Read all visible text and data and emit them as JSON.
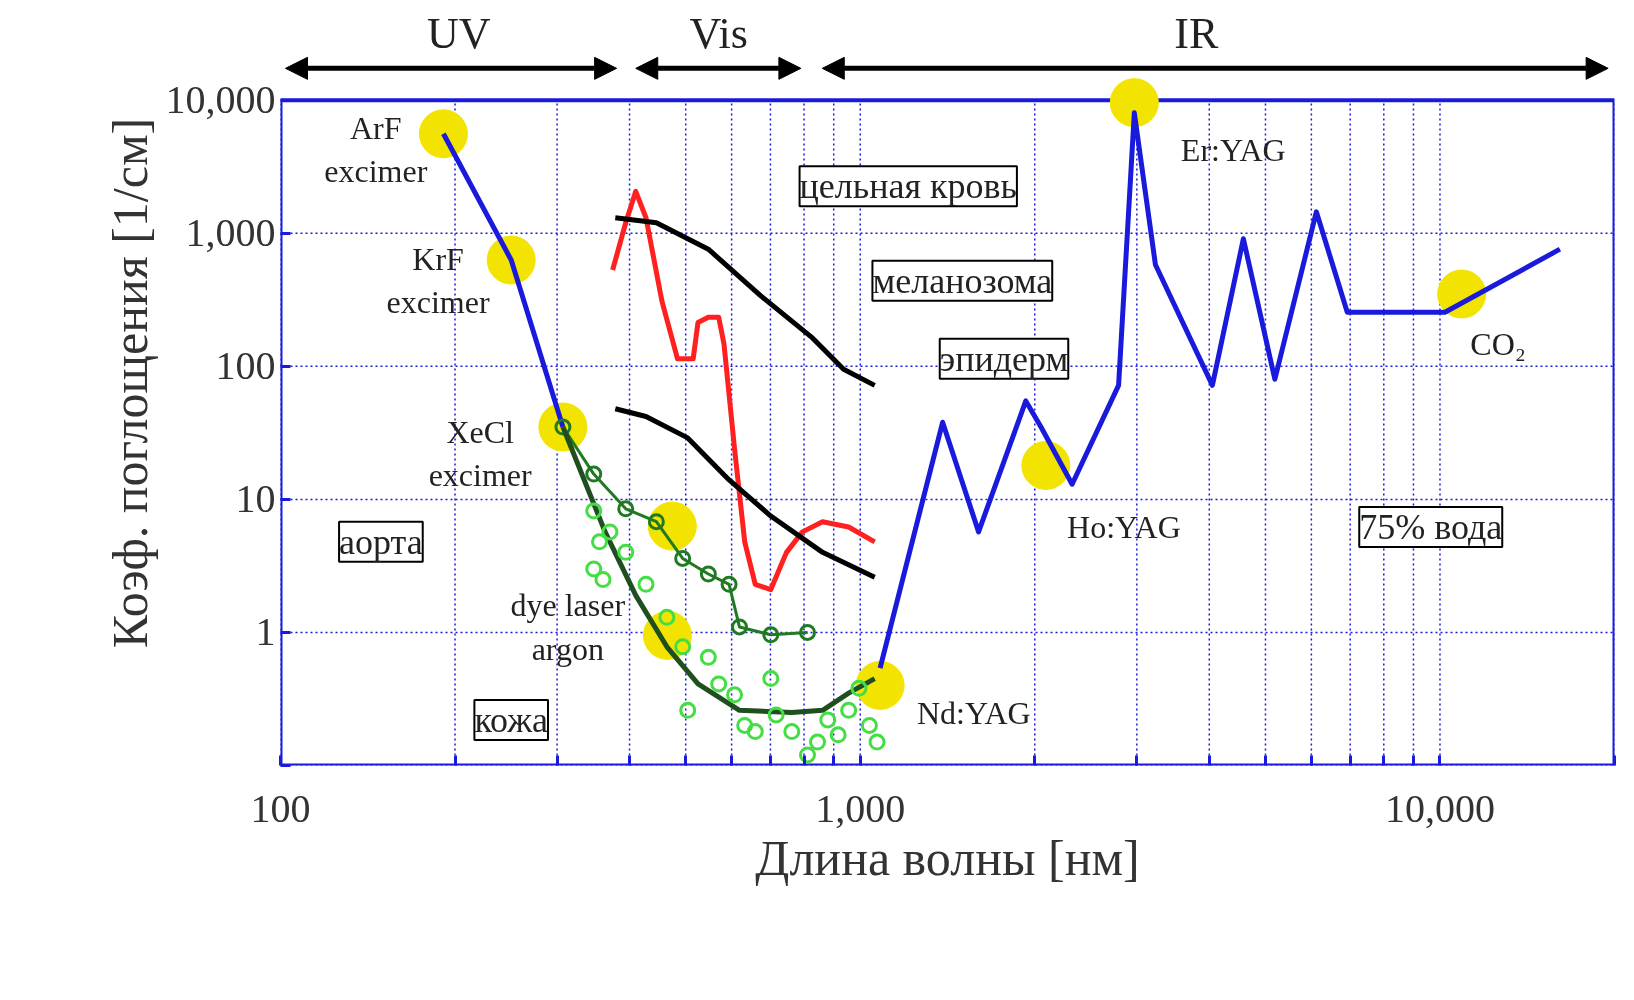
{
  "chart_data": {
    "type": "line",
    "xlabel": "Длина волны [нм]",
    "ylabel": "Коэф. поглощения [1/см]",
    "log": "xy",
    "grid": true,
    "xlim": [
      100,
      20000
    ],
    "ylim": [
      0.1,
      10000
    ],
    "xticks": [
      100,
      {
        "value": 200,
        "label": null
      },
      {
        "value": 300,
        "label": null
      },
      {
        "value": 400,
        "label": null
      },
      {
        "value": 500,
        "label": null
      },
      {
        "value": 600,
        "label": null
      },
      {
        "value": 700,
        "label": null
      },
      {
        "value": 800,
        "label": null
      },
      {
        "value": 900,
        "label": null
      },
      {
        "value": 1000,
        "label": "1,000"
      },
      {
        "value": 2000,
        "label": null
      },
      {
        "value": 3000,
        "label": null
      },
      {
        "value": 4000,
        "label": null
      },
      {
        "value": 5000,
        "label": null
      },
      {
        "value": 6000,
        "label": null
      },
      {
        "value": 7000,
        "label": null
      },
      {
        "value": 8000,
        "label": null
      },
      {
        "value": 9000,
        "label": null
      },
      {
        "value": 10000,
        "label": "10,000"
      },
      {
        "value": 20000,
        "label": null
      }
    ],
    "yticks": [
      {
        "value": 0.1,
        "label": null
      },
      1,
      10,
      100,
      {
        "value": 1000,
        "label": "1,000"
      },
      {
        "value": 10000,
        "label": "10,000"
      }
    ],
    "series": [
      {
        "type": "bubble",
        "color": "#f2e400",
        "x": [
          191,
          250,
          307,
          474,
          465,
          1082,
          2090,
          2970,
          10900
        ],
        "values": [
          5600,
          630,
          35,
          6.3,
          0.95,
          0.4,
          18,
          9600,
          350
        ],
        "sizes": [
          1,
          1,
          1,
          1,
          1,
          1,
          1,
          1,
          1
        ]
      },
      {
        "color": "#1a1adc",
        "x": [
          191,
          250,
          307,
          700,
          1082,
          1387,
          1600,
          1930,
          2050,
          2320,
          2790,
          2970,
          3230,
          4050,
          4580,
          5190,
          6120,
          6920,
          10200,
          16100
        ],
        "values": [
          5600,
          630,
          35,
          null,
          0.54,
          38,
          5.7,
          55,
          35,
          13,
          72,
          8050,
          580,
          72,
          910,
          80,
          1450,
          255,
          255,
          760
        ]
      },
      {
        "color": "#ff2020",
        "x": [
          374,
          394,
          410,
          427,
          455,
          484,
          515,
          525,
          547,
          570,
          582,
          607,
          632,
          659,
          701,
          746,
          795,
          861,
          955,
          1059
        ],
        "values": [
          530,
          1200,
          2070,
          1310,
          308,
          114,
          114,
          214,
          234,
          234,
          148,
          24,
          4.8,
          2.3,
          2.1,
          4.0,
          5.7,
          6.8,
          6.2,
          4.8
        ]
      },
      {
        "color": "#000000",
        "x": [
          378,
          445,
          547,
          673,
          828,
          936,
          1059
        ],
        "values": [
          1310,
          1200,
          760,
          340,
          163,
          95,
          72
        ]
      },
      {
        "color": "#000000",
        "x": [
          378,
          427,
          504,
          594,
          701,
          861,
          1059
        ],
        "values": [
          48,
          42,
          29,
          14,
          7.5,
          4.0,
          2.6
        ]
      },
      {
        "color": "#207a20",
        "marker": "circle",
        "x": [
          307,
          347,
          394,
          445,
          494,
          547,
          594,
          619,
          701,
          811
        ],
        "values": [
          35,
          15.5,
          8.5,
          6.8,
          3.6,
          2.75,
          2.3,
          1.1,
          0.96,
          1.0
        ]
      },
      {
        "type": "scatter",
        "color": "#44dd44",
        "marker": "circle",
        "x": [
          347,
          355,
          347,
          360,
          370,
          394,
          427,
          464,
          494,
          504,
          547,
          570,
          607,
          632,
          659,
          701,
          716,
          762,
          811,
          844,
          879,
          916,
          955,
          995,
          1037,
          1069
        ],
        "values": [
          8.2,
          4.8,
          3.0,
          2.5,
          5.7,
          4.0,
          2.3,
          1.3,
          0.78,
          0.26,
          0.65,
          0.41,
          0.34,
          0.2,
          0.18,
          0.45,
          0.24,
          0.18,
          0.12,
          0.15,
          0.22,
          0.17,
          0.26,
          0.38,
          0.2,
          0.15
        ]
      },
      {
        "color": "#1f4f1f",
        "x": [
          307,
          363,
          410,
          464,
          525,
          619,
          762,
          861,
          955,
          1059
        ],
        "values": [
          35,
          5.7,
          1.9,
          0.78,
          0.41,
          0.26,
          0.25,
          0.26,
          0.35,
          0.45
        ]
      }
    ],
    "annotations": [
      "ArF\nexcimer",
      "KrF\nexcimer",
      "XeCl\nexcimer",
      "dye laser\nargon",
      "Nd:YAG",
      "Ho:YAG",
      "Er:YAG",
      "CO₂",
      "цельная кровь",
      "меланозома",
      "эпидерм",
      "аорта",
      "кожа",
      "75% вода",
      "UV",
      "Vis",
      "IR"
    ]
  }
}
